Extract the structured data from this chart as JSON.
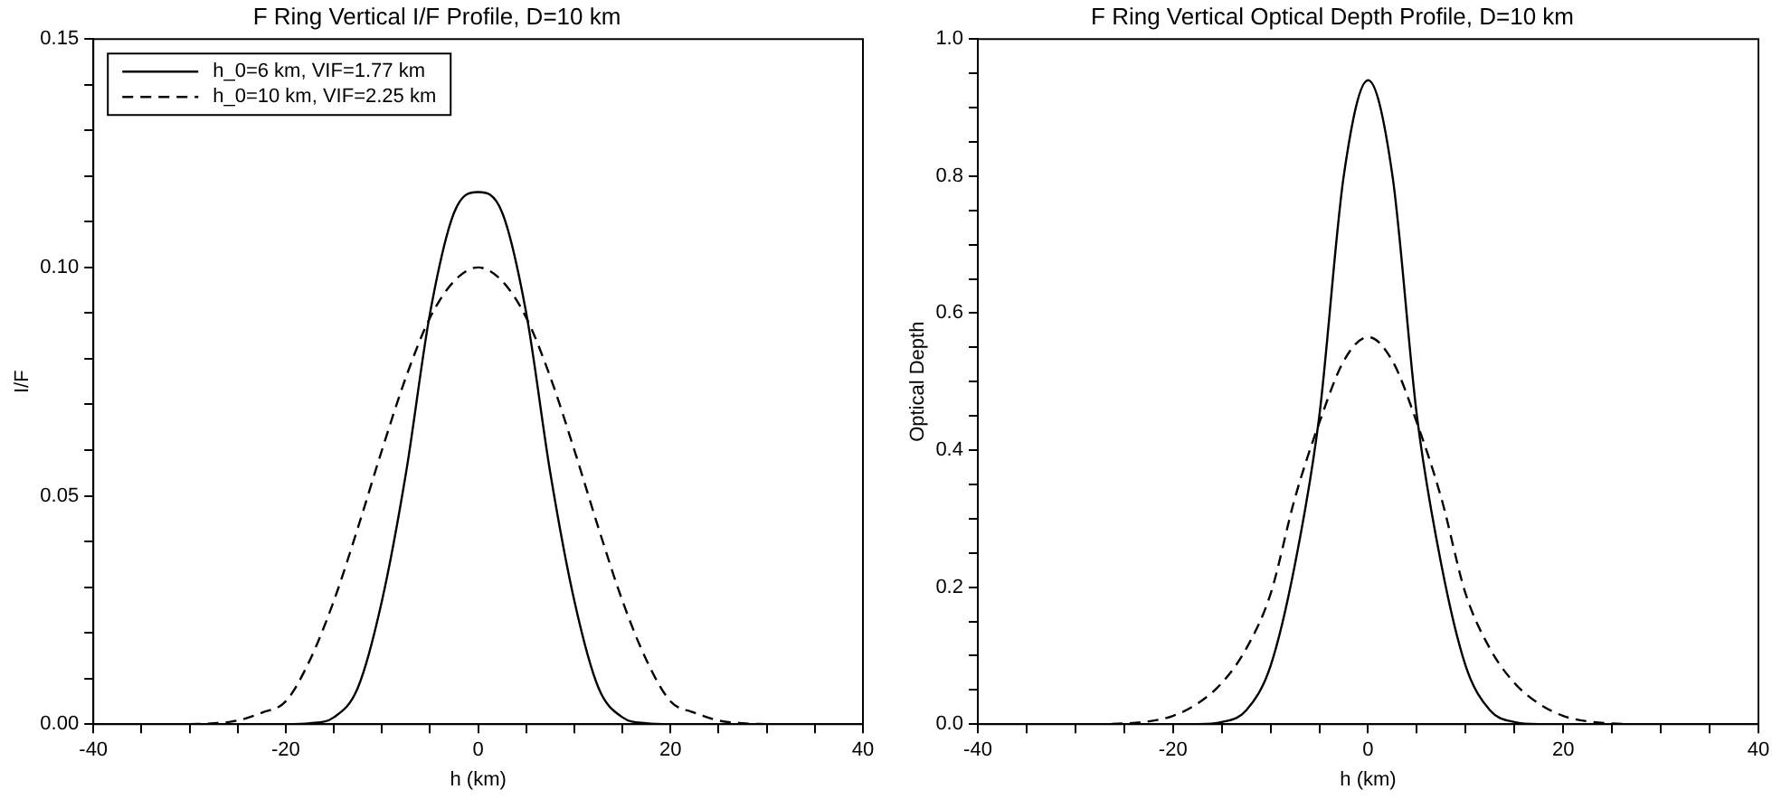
{
  "chart_data": [
    {
      "type": "line",
      "title": "F Ring Vertical I/F Profile, D=10 km",
      "xlabel": "h (km)",
      "ylabel": "I/F",
      "x": [
        -30,
        -27.5,
        -25,
        -22.5,
        -20,
        -17.5,
        -15,
        -12.5,
        -10,
        -7.5,
        -5,
        -2.5,
        0,
        2.5,
        5,
        7.5,
        10,
        12.5,
        15,
        17.5,
        20,
        22.5,
        25,
        27.5,
        30
      ],
      "series": [
        {
          "name": "h_0=6 km, VIF=1.77 km",
          "color": "#000000",
          "line_style": "solid",
          "values": [
            0,
            0,
            0,
            0,
            0,
            0.0002,
            0.0015,
            0.008,
            0.027,
            0.055,
            0.09,
            0.112,
            0.1165,
            0.112,
            0.09,
            0.055,
            0.027,
            0.008,
            0.0015,
            0.0002,
            0,
            0,
            0,
            0,
            0
          ]
        },
        {
          "name": "h_0=10 km, VIF=2.25 km",
          "color": "#000000",
          "line_style": "dashed",
          "values": [
            0,
            0.0002,
            0.0008,
            0.0025,
            0.005,
            0.014,
            0.027,
            0.043,
            0.06,
            0.076,
            0.089,
            0.097,
            0.1,
            0.097,
            0.089,
            0.076,
            0.06,
            0.043,
            0.027,
            0.014,
            0.005,
            0.0025,
            0.0008,
            0.0002,
            0
          ]
        }
      ],
      "xlim": [
        -40,
        40
      ],
      "xticks": [
        -40,
        {
          "value": -35,
          "label": null
        },
        -20,
        {
          "value": -30,
          "label": null
        },
        {
          "value": -25,
          "label": null
        },
        {
          "value": -15,
          "label": null
        },
        {
          "value": -10,
          "label": null
        },
        {
          "value": -5,
          "label": null
        },
        0,
        {
          "value": 5,
          "label": null
        },
        {
          "value": 10,
          "label": null
        },
        {
          "value": 15,
          "label": null
        },
        20,
        {
          "value": 25,
          "label": null
        },
        {
          "value": 30,
          "label": null
        },
        {
          "value": 35,
          "label": null
        },
        40
      ],
      "ylim": [
        0,
        0.15
      ],
      "yticks": [
        {
          "value": 0,
          "label": "0.00"
        },
        {
          "value": 0.01,
          "label": null
        },
        {
          "value": 0.02,
          "label": null
        },
        {
          "value": 0.03,
          "label": null
        },
        {
          "value": 0.04,
          "label": null
        },
        {
          "value": 0.05,
          "label": "0.05"
        },
        {
          "value": 0.06,
          "label": null
        },
        {
          "value": 0.07,
          "label": null
        },
        {
          "value": 0.08,
          "label": null
        },
        {
          "value": 0.09,
          "label": null
        },
        {
          "value": 0.1,
          "label": "0.10"
        },
        {
          "value": 0.11,
          "label": null
        },
        {
          "value": 0.12,
          "label": null
        },
        {
          "value": 0.13,
          "label": null
        },
        {
          "value": 0.14,
          "label": null
        },
        {
          "value": 0.15,
          "label": "0.15"
        }
      ],
      "grid": false,
      "legend": "top left",
      "marker": "none"
    },
    {
      "type": "line",
      "title": "F Ring Vertical Optical Depth Profile, D=10 km",
      "xlabel": "h (km)",
      "ylabel": "Optical Depth",
      "x": [
        -30,
        -27.5,
        -25,
        -22.5,
        -20,
        -17.5,
        -15,
        -12.5,
        -10,
        -7.5,
        -5,
        -2.5,
        0,
        2.5,
        5,
        7.5,
        10,
        12.5,
        15,
        17.5,
        20,
        22.5,
        25,
        27.5,
        30
      ],
      "series": [
        {
          "color": "#000000",
          "line_style": "solid",
          "values": [
            0,
            0,
            0,
            0,
            0,
            0,
            0.003,
            0.02,
            0.085,
            0.233,
            0.45,
            0.8,
            0.94,
            0.8,
            0.45,
            0.233,
            0.085,
            0.02,
            0.003,
            0,
            0,
            0,
            0,
            0,
            0
          ]
        },
        {
          "color": "#000000",
          "line_style": "dashed",
          "values": [
            0,
            0,
            0.001,
            0.004,
            0.012,
            0.03,
            0.06,
            0.11,
            0.19,
            0.33,
            0.44,
            0.53,
            0.565,
            0.53,
            0.44,
            0.33,
            0.19,
            0.11,
            0.06,
            0.03,
            0.012,
            0.004,
            0.001,
            0,
            0
          ]
        }
      ],
      "xlim": [
        -40,
        40
      ],
      "xticks": [
        -40,
        {
          "value": -35,
          "label": null
        },
        -20,
        {
          "value": -30,
          "label": null
        },
        {
          "value": -25,
          "label": null
        },
        {
          "value": -15,
          "label": null
        },
        {
          "value": -10,
          "label": null
        },
        {
          "value": -5,
          "label": null
        },
        0,
        {
          "value": 5,
          "label": null
        },
        {
          "value": 10,
          "label": null
        },
        {
          "value": 15,
          "label": null
        },
        20,
        {
          "value": 25,
          "label": null
        },
        {
          "value": 30,
          "label": null
        },
        {
          "value": 35,
          "label": null
        },
        40
      ],
      "ylim": [
        0,
        1
      ],
      "yticks": [
        {
          "value": 0,
          "label": "0.0"
        },
        {
          "value": 0.05,
          "label": null
        },
        {
          "value": 0.1,
          "label": null
        },
        {
          "value": 0.15,
          "label": null
        },
        {
          "value": 0.2,
          "label": "0.2"
        },
        {
          "value": 0.25,
          "label": null
        },
        {
          "value": 0.3,
          "label": null
        },
        {
          "value": 0.35,
          "label": null
        },
        {
          "value": 0.4,
          "label": "0.4"
        },
        {
          "value": 0.45,
          "label": null
        },
        {
          "value": 0.5,
          "label": null
        },
        {
          "value": 0.55,
          "label": null
        },
        {
          "value": 0.6,
          "label": "0.6"
        },
        {
          "value": 0.65,
          "label": null
        },
        {
          "value": 0.7,
          "label": null
        },
        {
          "value": 0.75,
          "label": null
        },
        {
          "value": 0.8,
          "label": "0.8"
        },
        {
          "value": 0.85,
          "label": null
        },
        {
          "value": 0.9,
          "label": null
        },
        {
          "value": 0.95,
          "label": null
        },
        {
          "value": 1,
          "label": "1.0"
        }
      ],
      "grid": false,
      "legend": false,
      "marker": "none"
    }
  ]
}
